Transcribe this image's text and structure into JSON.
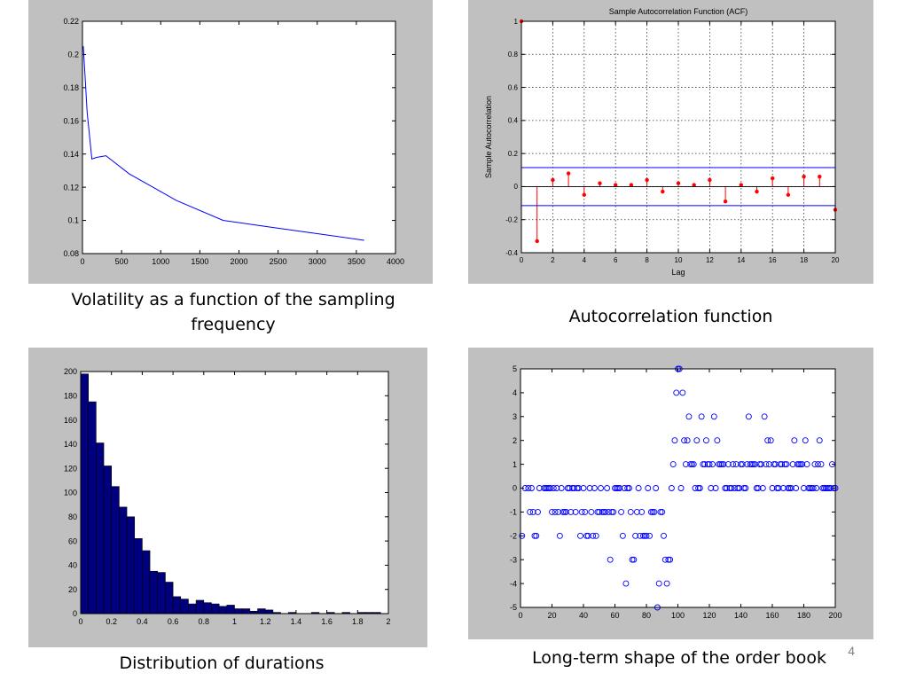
{
  "slide_number": "4",
  "captions": {
    "volatility": "Volatility as a function of the sampling frequency",
    "acf": "Autocorrelation function",
    "durations": "Distribution of durations",
    "orderbook": "Long-term shape of the order book"
  },
  "colors": {
    "panel_bg": "#c0c0c0",
    "line_blue": "#0000ff",
    "bar_navy": "#00007f",
    "stem_red": "#ff0000"
  },
  "chart_data": [
    {
      "id": "volatility",
      "type": "line",
      "title": "",
      "xlabel": "",
      "ylabel": "",
      "xlim": [
        0,
        4000
      ],
      "ylim": [
        0.08,
        0.22
      ],
      "xticks": [
        0,
        500,
        1000,
        1500,
        2000,
        2500,
        3000,
        3500,
        4000
      ],
      "yticks": [
        0.08,
        0.1,
        0.12,
        0.14,
        0.16,
        0.18,
        0.2,
        0.22
      ],
      "series": [
        {
          "x": [
            10,
            30,
            60,
            120,
            180,
            300,
            600,
            900,
            1200,
            1800,
            2400,
            3000,
            3600
          ],
          "y": [
            0.205,
            0.19,
            0.165,
            0.137,
            0.138,
            0.139,
            0.128,
            0.12,
            0.112,
            0.1,
            0.096,
            0.092,
            0.088
          ]
        }
      ],
      "grid": false
    },
    {
      "id": "acf",
      "type": "stem",
      "title": "Sample Autocorrelation Function (ACF)",
      "xlabel": "Lag",
      "ylabel": "Sample Autocorrelation",
      "xlim": [
        0,
        20
      ],
      "ylim": [
        -0.4,
        1
      ],
      "xticks": [
        0,
        2,
        4,
        6,
        8,
        10,
        12,
        14,
        16,
        18,
        20
      ],
      "yticks": [
        -0.4,
        -0.2,
        0,
        0.2,
        0.4,
        0.6,
        0.8,
        1
      ],
      "lags": [
        0,
        1,
        2,
        3,
        4,
        5,
        6,
        7,
        8,
        9,
        10,
        11,
        12,
        13,
        14,
        15,
        16,
        17,
        18,
        19,
        20
      ],
      "values": [
        1,
        -0.33,
        0.04,
        0.08,
        -0.05,
        0.02,
        0.01,
        0.01,
        0.04,
        -0.03,
        0.02,
        0.01,
        0.04,
        -0.09,
        0.01,
        -0.03,
        0.05,
        -0.05,
        0.06,
        0.06,
        -0.14
      ],
      "bounds": [
        0.115,
        -0.115
      ],
      "grid": true
    },
    {
      "id": "durations",
      "type": "bar",
      "title": "",
      "xlabel": "",
      "ylabel": "",
      "xlim": [
        0,
        2
      ],
      "ylim": [
        0,
        200
      ],
      "xticks": [
        0,
        0.2,
        0.4,
        0.6,
        0.8,
        1,
        1.2,
        1.4,
        1.6,
        1.8,
        2
      ],
      "yticks": [
        0,
        20,
        40,
        60,
        80,
        100,
        120,
        140,
        160,
        180,
        200
      ],
      "bin_width": 0.05,
      "bin_starts": [
        0,
        0.05,
        0.1,
        0.15,
        0.2,
        0.25,
        0.3,
        0.35,
        0.4,
        0.45,
        0.5,
        0.55,
        0.6,
        0.65,
        0.7,
        0.75,
        0.8,
        0.85,
        0.9,
        0.95,
        1.0,
        1.05,
        1.1,
        1.15,
        1.2,
        1.25,
        1.3,
        1.35,
        1.4,
        1.45,
        1.5,
        1.55,
        1.6,
        1.65,
        1.7,
        1.75,
        1.8,
        1.85,
        1.9,
        1.95
      ],
      "values": [
        198,
        175,
        141,
        122,
        105,
        88,
        80,
        62,
        52,
        35,
        34,
        26,
        14,
        12,
        8,
        11,
        9,
        8,
        6,
        7,
        4,
        4,
        2,
        4,
        3,
        1,
        0,
        1,
        0,
        0,
        1,
        0,
        1,
        0,
        1,
        0,
        1,
        1,
        1,
        0
      ],
      "grid": false
    },
    {
      "id": "orderbook",
      "type": "scatter",
      "title": "",
      "xlabel": "",
      "ylabel": "",
      "xlim": [
        0,
        200
      ],
      "ylim": [
        -5,
        5
      ],
      "xticks": [
        0,
        20,
        40,
        60,
        80,
        100,
        120,
        140,
        160,
        180,
        200
      ],
      "yticks": [
        -5,
        -4,
        -3,
        -2,
        -1,
        0,
        1,
        2,
        3,
        4,
        5
      ],
      "points": [
        [
          1,
          -2
        ],
        [
          3,
          0
        ],
        [
          5,
          0
        ],
        [
          6,
          -1
        ],
        [
          7,
          0
        ],
        [
          8,
          -1
        ],
        [
          9,
          -2
        ],
        [
          10,
          -2
        ],
        [
          11,
          -1
        ],
        [
          12,
          0
        ],
        [
          15,
          0
        ],
        [
          16,
          0
        ],
        [
          17,
          0
        ],
        [
          18,
          0
        ],
        [
          19,
          0
        ],
        [
          20,
          -1
        ],
        [
          21,
          0
        ],
        [
          22,
          -1
        ],
        [
          23,
          0
        ],
        [
          24,
          -1
        ],
        [
          25,
          -2
        ],
        [
          26,
          0
        ],
        [
          27,
          -1
        ],
        [
          28,
          -1
        ],
        [
          29,
          -1
        ],
        [
          30,
          0
        ],
        [
          31,
          0
        ],
        [
          32,
          -1
        ],
        [
          33,
          0
        ],
        [
          34,
          0
        ],
        [
          35,
          -1
        ],
        [
          36,
          0
        ],
        [
          37,
          0
        ],
        [
          38,
          -2
        ],
        [
          39,
          -1
        ],
        [
          40,
          0
        ],
        [
          41,
          -1
        ],
        [
          42,
          -2
        ],
        [
          43,
          -2
        ],
        [
          44,
          0
        ],
        [
          45,
          -1
        ],
        [
          46,
          -2
        ],
        [
          47,
          0
        ],
        [
          48,
          -2
        ],
        [
          49,
          -1
        ],
        [
          50,
          -1
        ],
        [
          51,
          0
        ],
        [
          52,
          -1
        ],
        [
          53,
          -1
        ],
        [
          54,
          -1
        ],
        [
          55,
          0
        ],
        [
          56,
          -1
        ],
        [
          57,
          -3
        ],
        [
          58,
          -1
        ],
        [
          59,
          -1
        ],
        [
          60,
          0
        ],
        [
          61,
          0
        ],
        [
          62,
          0
        ],
        [
          63,
          0
        ],
        [
          64,
          -1
        ],
        [
          65,
          -2
        ],
        [
          66,
          0
        ],
        [
          67,
          -4
        ],
        [
          68,
          0
        ],
        [
          69,
          0
        ],
        [
          70,
          -1
        ],
        [
          71,
          -3
        ],
        [
          72,
          -3
        ],
        [
          73,
          -2
        ],
        [
          74,
          -1
        ],
        [
          75,
          0
        ],
        [
          76,
          -2
        ],
        [
          77,
          -1
        ],
        [
          78,
          -2
        ],
        [
          79,
          -2
        ],
        [
          80,
          -2
        ],
        [
          81,
          0
        ],
        [
          82,
          -2
        ],
        [
          83,
          -1
        ],
        [
          84,
          -1
        ],
        [
          85,
          -1
        ],
        [
          86,
          0
        ],
        [
          87,
          -5
        ],
        [
          88,
          -4
        ],
        [
          89,
          -1
        ],
        [
          90,
          -1
        ],
        [
          91,
          -2
        ],
        [
          92,
          -3
        ],
        [
          93,
          -4
        ],
        [
          94,
          -3
        ],
        [
          95,
          -3
        ],
        [
          96,
          0
        ],
        [
          97,
          1
        ],
        [
          98,
          2
        ],
        [
          99,
          4
        ],
        [
          100,
          5
        ],
        [
          101,
          5
        ],
        [
          102,
          0
        ],
        [
          103,
          4
        ],
        [
          104,
          2
        ],
        [
          105,
          1
        ],
        [
          106,
          2
        ],
        [
          107,
          3
        ],
        [
          108,
          1
        ],
        [
          109,
          1
        ],
        [
          110,
          1
        ],
        [
          111,
          0
        ],
        [
          112,
          2
        ],
        [
          113,
          0
        ],
        [
          114,
          0
        ],
        [
          115,
          3
        ],
        [
          116,
          1
        ],
        [
          117,
          1
        ],
        [
          118,
          2
        ],
        [
          119,
          1
        ],
        [
          120,
          1
        ],
        [
          121,
          0
        ],
        [
          122,
          1
        ],
        [
          123,
          3
        ],
        [
          124,
          0
        ],
        [
          125,
          2
        ],
        [
          126,
          1
        ],
        [
          127,
          1
        ],
        [
          128,
          1
        ],
        [
          129,
          1
        ],
        [
          130,
          0
        ],
        [
          131,
          0
        ],
        [
          132,
          1
        ],
        [
          133,
          0
        ],
        [
          134,
          0
        ],
        [
          135,
          1
        ],
        [
          136,
          0
        ],
        [
          137,
          1
        ],
        [
          138,
          0
        ],
        [
          139,
          0
        ],
        [
          140,
          1
        ],
        [
          141,
          1
        ],
        [
          142,
          0
        ],
        [
          143,
          0
        ],
        [
          144,
          1
        ],
        [
          145,
          3
        ],
        [
          146,
          1
        ],
        [
          147,
          1
        ],
        [
          148,
          1
        ],
        [
          149,
          1
        ],
        [
          150,
          0
        ],
        [
          151,
          0
        ],
        [
          152,
          1
        ],
        [
          153,
          1
        ],
        [
          154,
          0
        ],
        [
          155,
          3
        ],
        [
          156,
          1
        ],
        [
          157,
          2
        ],
        [
          158,
          1
        ],
        [
          159,
          2
        ],
        [
          160,
          0
        ],
        [
          161,
          1
        ],
        [
          162,
          1
        ],
        [
          163,
          0
        ],
        [
          164,
          0
        ],
        [
          165,
          1
        ],
        [
          166,
          1
        ],
        [
          167,
          0
        ],
        [
          168,
          1
        ],
        [
          169,
          1
        ],
        [
          170,
          0
        ],
        [
          171,
          0
        ],
        [
          172,
          0
        ],
        [
          173,
          1
        ],
        [
          174,
          2
        ],
        [
          175,
          0
        ],
        [
          176,
          1
        ],
        [
          177,
          1
        ],
        [
          178,
          1
        ],
        [
          179,
          1
        ],
        [
          180,
          0
        ],
        [
          181,
          2
        ],
        [
          182,
          1
        ],
        [
          183,
          0
        ],
        [
          184,
          0
        ],
        [
          185,
          0
        ],
        [
          186,
          0
        ],
        [
          187,
          1
        ],
        [
          188,
          0
        ],
        [
          189,
          1
        ],
        [
          190,
          2
        ],
        [
          191,
          1
        ],
        [
          192,
          0
        ],
        [
          193,
          0
        ],
        [
          194,
          0
        ],
        [
          195,
          0
        ],
        [
          196,
          0
        ],
        [
          197,
          0
        ],
        [
          198,
          1
        ],
        [
          199,
          0
        ],
        [
          200,
          0
        ]
      ],
      "grid": false
    }
  ]
}
